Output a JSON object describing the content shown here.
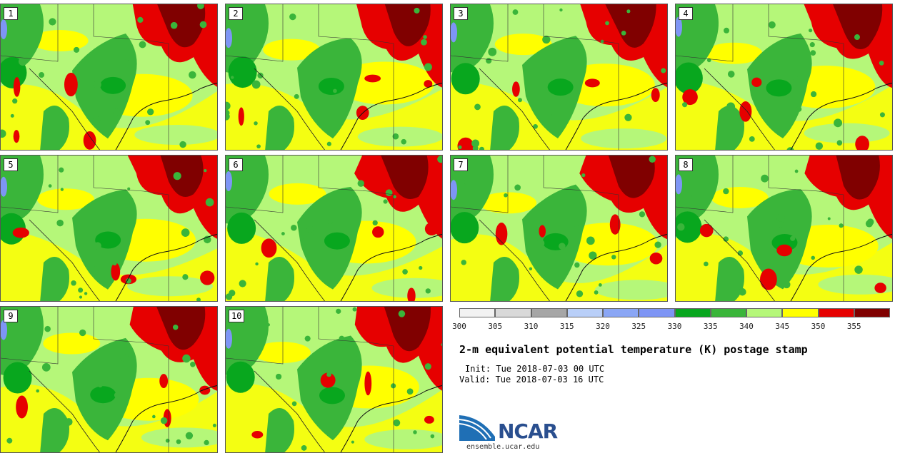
{
  "panels": [
    {
      "label": "1"
    },
    {
      "label": "2"
    },
    {
      "label": "3"
    },
    {
      "label": "4"
    },
    {
      "label": "5"
    },
    {
      "label": "6"
    },
    {
      "label": "7"
    },
    {
      "label": "8"
    },
    {
      "label": "9"
    },
    {
      "label": "10"
    }
  ],
  "colorbar": {
    "colors": [
      "#f2f2f2",
      "#d9d9d9",
      "#a6a6a6",
      "#b9cff8",
      "#8aa6f5",
      "#7e95f5",
      "#08a71e",
      "#3ab53a",
      "#b5f779",
      "#ffff00",
      "#e60000",
      "#800000"
    ],
    "ticks": [
      "300",
      "305",
      "310",
      "315",
      "320",
      "325",
      "330",
      "335",
      "340",
      "345",
      "350",
      "355"
    ]
  },
  "map_colors": {
    "base": "#b5f779",
    "green": "#3ab53a",
    "dark_green": "#08a71e",
    "yellow": "#ffff00",
    "red": "#e60000",
    "dark_red": "#800000",
    "blue": "#7e95f5"
  },
  "title": "2-m equivalent potential temperature (K) postage stamp",
  "init_text": "Init: Tue 2018-07-03 00 UTC",
  "valid_text": "Valid: Tue 2018-07-03 16 UTC",
  "logo": {
    "name": "NCAR",
    "url": "ensemble.ucar.edu"
  }
}
